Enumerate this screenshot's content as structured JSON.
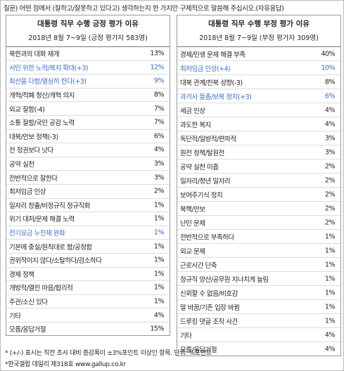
{
  "question": "질문) 어떤 점에서 (잘하고/잘못하고 있다고) 생각하는지 한 가지만 구체적으로 말씀해 주십시오.(자유응답)",
  "tables": [
    {
      "title": "대통령 직무 수행 긍정 평가 이유",
      "subtitle": "2018년 8월 7~9일 (긍정 평가자 583명)",
      "rows": [
        {
          "label": "북한과의 대화 재개",
          "value": "13%"
        },
        {
          "label": "서민 위한 노력/복지 확대(+3)",
          "value": "12%",
          "color": "#3d6fc6"
        },
        {
          "label": "최선을 다함/열심히 한다(+3)",
          "value": "9%",
          "color": "#3d6fc6"
        },
        {
          "label": "개혁/적폐 청산/개혁 의지",
          "value": "8%"
        },
        {
          "label": "외교 잘함(-4)",
          "value": "7%"
        },
        {
          "label": "소통 잘함/국민 공감 노력",
          "value": "7%"
        },
        {
          "label": "대북/안보 정책(-3)",
          "value": "6%"
        },
        {
          "label": "전 정권보다 낫다",
          "value": "4%"
        },
        {
          "label": "공약 실천",
          "value": "3%"
        },
        {
          "label": "전반적으로 잘한다",
          "value": "3%"
        },
        {
          "label": "최저임금 인상",
          "value": "2%"
        },
        {
          "label": "일자리 창출/비정규직 정규직화",
          "value": "1%"
        },
        {
          "label": "위기 대처/문제 해결 노력",
          "value": "1%"
        },
        {
          "label": "전기요금 누진제 완화",
          "value": "1%",
          "color": "#3d6fc6"
        },
        {
          "label": "기본에 충실/원칙대로 함/공정함",
          "value": "1%"
        },
        {
          "label": "권위적이지 않다/소탈하다/검소하다",
          "value": "1%"
        },
        {
          "label": "경제 정책",
          "value": "1%"
        },
        {
          "label": "개방적/열린 마음/합리적",
          "value": "1%"
        },
        {
          "label": "주관/소신 있다",
          "value": "1%"
        },
        {
          "label": "기타",
          "value": "4%"
        },
        {
          "label": "모름/응답거절",
          "value": "15%"
        }
      ]
    },
    {
      "title": "대통령 직무 수행 부정 평가 이유",
      "subtitle": "2018년 8월 7~9일 (부정 평가자 309명)",
      "rows": [
        {
          "label": "경제/민생 문제 해결 부족",
          "value": "40%"
        },
        {
          "label": "최저임금 인상(+4)",
          "value": "10%",
          "color": "#3d6fc6"
        },
        {
          "label": "대북 관계/친북 성향(-3)",
          "value": "8%"
        },
        {
          "label": "과거사 들춤/보복 정치(+3)",
          "value": "6%",
          "color": "#3d6fc6"
        },
        {
          "label": "세금 인상",
          "value": "4%"
        },
        {
          "label": "과도한 복지",
          "value": "4%"
        },
        {
          "label": "독단적/일방적/편파적",
          "value": "3%"
        },
        {
          "label": "원전 정책/탈원전",
          "value": "3%"
        },
        {
          "label": "공약 실천 미흡",
          "value": "2%"
        },
        {
          "label": "일자리/청년 일자리",
          "value": "2%"
        },
        {
          "label": "보여주기식 정치",
          "value": "2%"
        },
        {
          "label": "북핵/안보",
          "value": "2%"
        },
        {
          "label": "난민 문제",
          "value": "2%"
        },
        {
          "label": "전반적으로 부족하다",
          "value": "1%"
        },
        {
          "label": "외교 문제",
          "value": "1%"
        },
        {
          "label": "근로시간 단축",
          "value": "1%"
        },
        {
          "label": "정규직 양산/공무원 지나치게 늘림",
          "value": "1%"
        },
        {
          "label": "신뢰할 수 없음/비호감",
          "value": "1%"
        },
        {
          "label": "말 바꿈/기존 입장 바뀜",
          "value": "1%"
        },
        {
          "label": "드루킹 댓글 조작 사건",
          "value": "1%"
        },
        {
          "label": "기타",
          "value": "4%"
        },
        {
          "label": "모름/응답거절",
          "value": "4%"
        }
      ]
    }
  ],
  "footnotes": [
    "* (+/-) 표시는 직전 조사 대비 증감폭이 ±3%포인트 이상인 항목. 단위: %포인트",
    "*한국갤럽 데일리 제318호 www.gallup.co.kr"
  ]
}
